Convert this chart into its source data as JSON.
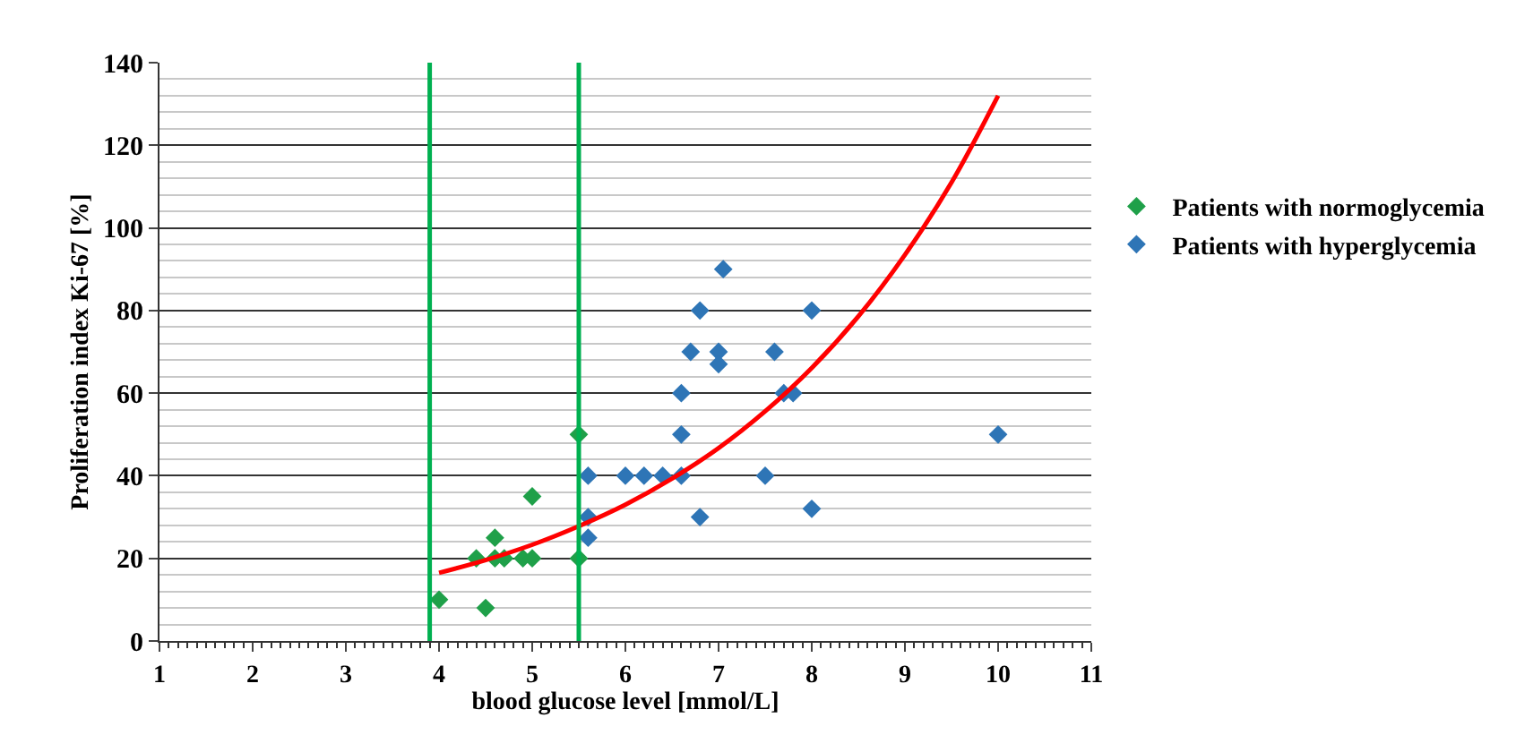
{
  "chart_data": {
    "type": "scatter",
    "xlabel": "blood glucose level [mmol/L]",
    "ylabel": "Proliferation index Ki-67 [%]",
    "xlim": [
      1,
      11
    ],
    "xticks": [
      1,
      2,
      3,
      4,
      5,
      6,
      7,
      8,
      9,
      10,
      11
    ],
    "ylim": [
      0,
      140
    ],
    "yticks": [
      0,
      20,
      40,
      60,
      80,
      100,
      120,
      140
    ],
    "grid": "y",
    "legend": "right",
    "marker": "diamond",
    "series": [
      {
        "name": "Patients with normoglycemia",
        "color": "#1fa049",
        "x": [
          4.0,
          4.5,
          4.4,
          4.6,
          4.6,
          4.7,
          4.9,
          5.0,
          5.0,
          5.5,
          5.5
        ],
        "values": [
          10,
          8,
          20,
          25,
          20,
          20,
          20,
          20,
          35,
          50,
          20
        ]
      },
      {
        "name": "Patients with hyperglycemia",
        "color": "#2e75b6",
        "x": [
          5.6,
          5.6,
          5.6,
          6.0,
          6.2,
          6.4,
          6.6,
          6.6,
          6.6,
          6.7,
          6.8,
          7.0,
          7.0,
          7.05,
          6.8,
          7.6,
          7.7,
          7.8,
          8.0,
          7.5,
          8.0,
          10.0
        ],
        "values": [
          40,
          30,
          25,
          40,
          40,
          40,
          40,
          50,
          60,
          70,
          80,
          70,
          67,
          90,
          30,
          70,
          60,
          60,
          80,
          40,
          32,
          50
        ]
      },
      {
        "type": "line",
        "color": "#ff0000",
        "marker": "none",
        "x": [
          4,
          4.5,
          5,
          5.5,
          6,
          6.5,
          7,
          7.5,
          8,
          8.5,
          9,
          9.5,
          10
        ],
        "values": [
          16.5,
          19.6,
          23.3,
          27.8,
          33.0,
          39.3,
          46.7,
          55.6,
          66.1,
          78.6,
          93.5,
          111,
          132
        ]
      }
    ],
    "ref_lines": [
      {
        "axis": "x",
        "value": 3.9,
        "color": "#00b050"
      },
      {
        "axis": "x",
        "value": 5.5,
        "color": "#00b050"
      }
    ]
  }
}
